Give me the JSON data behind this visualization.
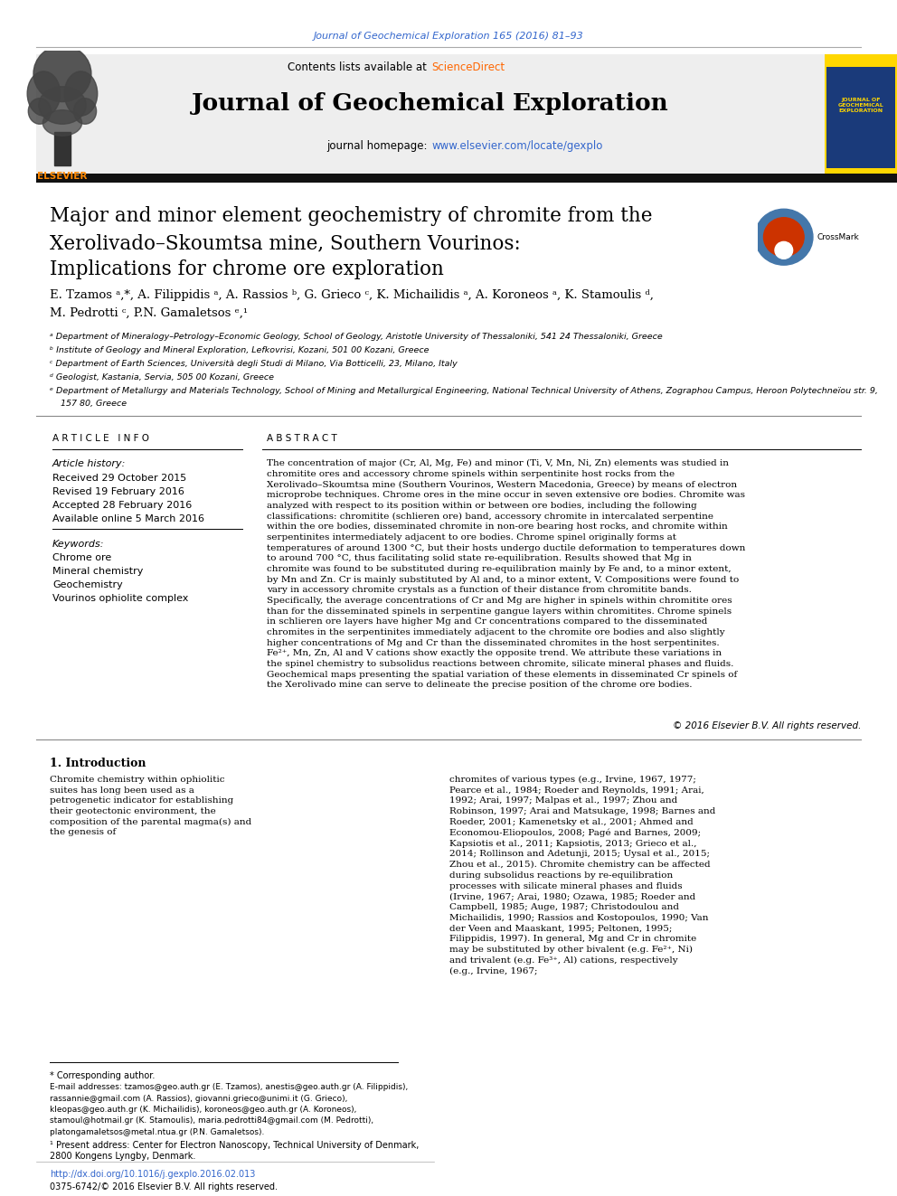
{
  "bg_color": "#ffffff",
  "top_journal_ref": "Journal of Geochemical Exploration 165 (2016) 81–93",
  "top_journal_ref_color": "#3366cc",
  "journal_title": "Journal of Geochemical Exploration",
  "journal_homepage_url": "www.elsevier.com/locate/gexplo",
  "journal_homepage_url_color": "#3366cc",
  "thick_bar_color": "#111111",
  "article_title_line1": "Major and minor element geochemistry of chromite from the",
  "article_title_line2": "Xerolivado–Skoumtsa mine, Southern Vourinos:",
  "article_title_line3": "Implications for chrome ore exploration",
  "authors_line1": "E. Tzamos ᵃ,*, A. Filippidis ᵃ, A. Rassios ᵇ, G. Grieco ᶜ, K. Michailidis ᵃ, A. Koroneos ᵃ, K. Stamoulis ᵈ,",
  "authors_line2": "M. Pedrotti ᶜ, P.N. Gamaletsos ᵉ,¹",
  "affil_a": "ᵃ Department of Mineralogy–Petrology–Economic Geology, School of Geology, Aristotle University of Thessaloniki, 541 24 Thessaloniki, Greece",
  "affil_b": "ᵇ Institute of Geology and Mineral Exploration, Lefkovrisi, Kozani, 501 00 Kozani, Greece",
  "affil_c": "ᶜ Department of Earth Sciences, Università degli Studi di Milano, Via Botticelli, 23, Milano, Italy",
  "affil_d": "ᵈ Geologist, Kastania, Servia, 505 00 Kozani, Greece",
  "affil_e": "ᵉ Department of Metallurgy and Materials Technology, School of Mining and Metallurgical Engineering, National Technical University of Athens, Zographou Campus, Heroon Polytechneïou str. 9,",
  "affil_e2": "    157 80, Greece",
  "article_info_header": "A R T I C L E   I N F O",
  "article_history_label": "Article history:",
  "received": "Received 29 October 2015",
  "revised": "Revised 19 February 2016",
  "accepted": "Accepted 28 February 2016",
  "available": "Available online 5 March 2016",
  "keywords_label": "Keywords:",
  "keyword1": "Chrome ore",
  "keyword2": "Mineral chemistry",
  "keyword3": "Geochemistry",
  "keyword4": "Vourinos ophiolite complex",
  "abstract_header": "A B S T R A C T",
  "abstract_text": "The concentration of major (Cr, Al, Mg, Fe) and minor (Ti, V, Mn, Ni, Zn) elements was studied in chromitite ores and accessory chrome spinels within serpentinite host rocks from the Xerolivado–Skoumtsa mine (Southern Vourinos, Western Macedonia, Greece) by means of electron microprobe techniques. Chrome ores in the mine occur in seven extensive ore bodies. Chromite was analyzed with respect to its position within or between ore bodies, including the following classifications: chromitite (schlieren ore) band, accessory chromite in intercalated serpentine within the ore bodies, disseminated chromite in non-ore bearing host rocks, and chromite within serpentinites intermediately adjacent to ore bodies. Chrome spinel originally forms at temperatures of around 1300 °C, but their hosts undergo ductile deformation to temperatures down to around 700 °C, thus facilitating solid state re-equilibration. Results showed that Mg in chromite was found to be substituted during re-equilibration mainly by Fe and, to a minor extent, by Mn and Zn. Cr is mainly substituted by Al and, to a minor extent, V. Compositions were found to vary in accessory chromite crystals as a function of their distance from chromitite bands. Specifically, the average concentrations of Cr and Mg are higher in spinels within chromitite ores than for the disseminated spinels in serpentine gangue layers within chromitites. Chrome spinels in schlieren ore layers have higher Mg and Cr concentrations compared to the disseminated chromites in the serpentinites immediately adjacent to the chromite ore bodies and also slightly higher concentrations of Mg and Cr than the disseminated chromites in the host serpentinites. Fe²⁺, Mn, Zn, Al and V cations show exactly the opposite trend. We attribute these variations in the spinel chemistry to subsolidus reactions between chromite, silicate mineral phases and fluids. Geochemical maps presenting the spatial variation of these elements in disseminated Cr spinels of the Xerolivado mine can serve to delineate the precise position of the chrome ore bodies.",
  "copyright": "© 2016 Elsevier B.V. All rights reserved.",
  "intro_header": "1. Introduction",
  "intro_text_left": "Chromite chemistry within ophiolitic suites has long been used as a petrogenetic indicator for establishing their geotectonic environment, the composition of the parental magma(s) and the genesis of",
  "intro_text_right": "chromites of various types (e.g., Irvine, 1967, 1977; Pearce et al., 1984; Roeder and Reynolds, 1991; Arai, 1992; Arai, 1997; Malpas et al., 1997; Zhou and Robinson, 1997; Arai and Matsukage, 1998; Barnes and Roeder, 2001; Kamenetsky et al., 2001; Ahmed and Economou-Eliopoulos, 2008; Pagé and Barnes, 2009; Kapsiotis et al., 2011; Kapsiotis, 2013; Grieco et al., 2014; Rollinson and Adetunji, 2015; Uysal et al., 2015; Zhou et al., 2015). Chromite chemistry can be affected during subsolidus reactions by re-equilibration processes with silicate mineral phases and fluids (Irvine, 1967; Arai, 1980; Ozawa, 1985; Roeder and Campbell, 1985; Auge, 1987; Christodoulou and Michailidis, 1990; Rassios and Kostopoulos, 1990; Van der Veen and Maaskant, 1995; Peltonen, 1995; Filippidis, 1997). In general, Mg and Cr in chromite may be substituted by other bivalent (e.g. Fe²⁺, Ni) and trivalent (e.g. Fe³⁺, Al) cations, respectively (e.g., Irvine, 1967;",
  "footnote_corresponding": "* Corresponding author.",
  "footnote_email_lines": [
    "E-mail addresses: tzamos@geo.auth.gr (E. Tzamos), anestis@geo.auth.gr (A. Filippidis),",
    "rassannie@gmail.com (A. Rassios), giovanni.grieco@unimi.it (G. Grieco),",
    "kleopas@geo.auth.gr (K. Michailidis), koroneos@geo.auth.gr (A. Koroneos),",
    "stamoul@hotmail.gr (K. Stamoulis), maria.pedrotti84@gmail.com (M. Pedrotti),",
    "platongamaletsos@metal.ntua.gr (P.N. Gamaletsos)."
  ],
  "footnote1_lines": [
    "¹ Present address: Center for Electron Nanoscopy, Technical University of Denmark,",
    "2800 Kongens Lyngby, Denmark."
  ],
  "doi_text": "http://dx.doi.org/10.1016/j.gexplo.2016.02.013",
  "doi_color": "#3366cc",
  "issn_text": "0375-6742/© 2016 Elsevier B.V. All rights reserved."
}
